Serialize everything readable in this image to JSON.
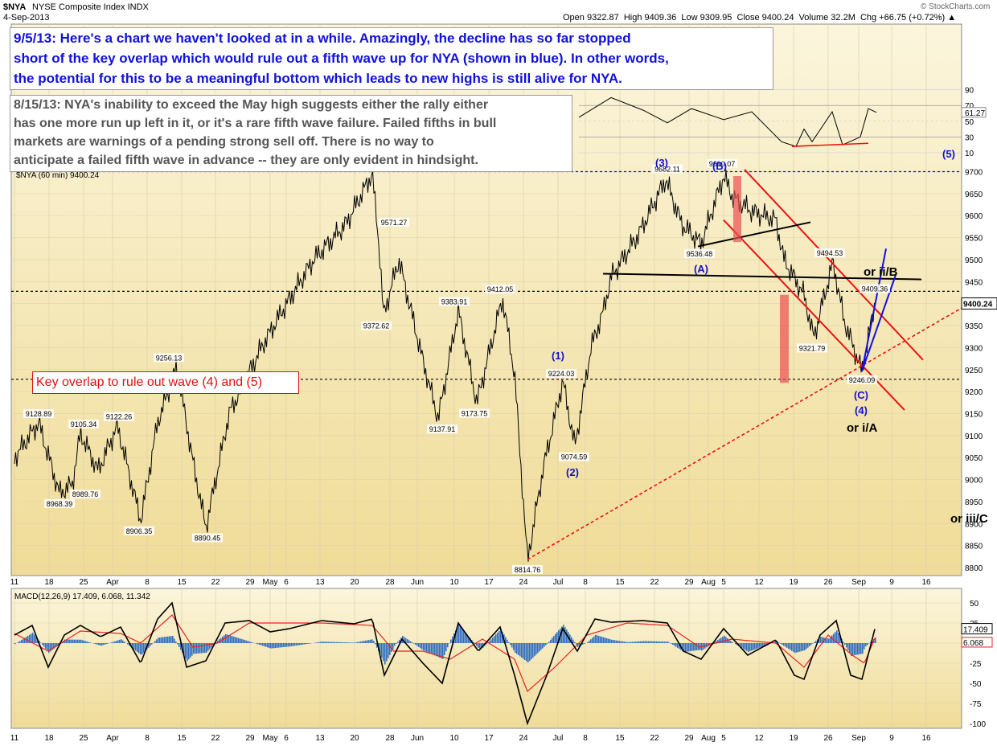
{
  "header": {
    "symbol": "$NYA",
    "name": "NYSE Composite Index INDX",
    "date": "4-Sep-2013",
    "ohlc": "Open 9322.87  High 9409.36  Low 9309.95  Close 9400.24  Volume 32.2M  Chg +66.75 (+0.72%) ▲",
    "watermark": "© StockCharts.com"
  },
  "notes": {
    "note1": "9/5/13:  Here's a chart we haven't looked at in a while.  Amazingly, the decline has so far stopped short of the key overlap which would rule out a fifth wave up for NYA (shown in blue).  In other words, the potential for this to be a meaningful bottom which leads to new highs is still alive for NYA.",
    "note1_lines": [
      "9/5/13:  Here's a chart we haven't looked at in a while.  Amazingly, the decline has so far stopped",
      "short of the key overlap which would rule out a fifth wave up for NYA (shown in blue).  In other words,",
      "the potential for this to be a meaningful bottom which leads to new highs is still alive for NYA."
    ],
    "note2_lines": [
      "8/15/13:  NYA's inability to exceed the May high suggests either the rally either",
      "has one more run up left in it, or it's a rare fifth wave failure.  Failed fifths in bull",
      "markets are warnings of a pending strong sell off.  There is no way to",
      "anticipate a failed fifth wave in advance -- they are only evident in hindsight."
    ],
    "key_overlap": "Key overlap to rule out wave (4) and (5)"
  },
  "colors": {
    "bg_top": "#fbf5dc",
    "bg_bottom": "#f0dc98",
    "note1_text": "#1010e0",
    "note2_text": "#555555",
    "wave_blue": "#1010d0",
    "trend_red": "#ee1010",
    "macd_line": "#000000",
    "signal_line": "#ee2020",
    "hist": "#3070c0"
  },
  "chart_data": {
    "type": "line",
    "title": "$NYA (60 min) 9400.24",
    "price_axis": {
      "ticks": [
        8800,
        8850,
        8900,
        8950,
        9000,
        9050,
        9100,
        9150,
        9200,
        9250,
        9300,
        9350,
        9400,
        9450,
        9500,
        9550,
        9600,
        9650,
        9700
      ],
      "ylim": [
        8780,
        9720
      ],
      "last_value": "9400.24"
    },
    "rsi_axis": {
      "ticks": [
        10,
        30,
        50,
        70,
        90
      ],
      "last_value": "61.27"
    },
    "macd_axis": {
      "ticks": [
        50,
        25,
        0,
        -25,
        -50,
        -75,
        -100
      ],
      "ylim": [
        -105,
        60
      ],
      "label": "MACD(12,26,9) 17.409, 6.068, 11.342",
      "macd_value": "17.409",
      "signal_value": "6.068"
    },
    "x_ticks": [
      "11",
      "18",
      "25",
      "Apr",
      "8",
      "15",
      "22",
      "29",
      "May",
      "6",
      "13",
      "20",
      "28",
      "Jun",
      "10",
      "17",
      "24",
      "Jul",
      "8",
      "15",
      "22",
      "29",
      "Aug",
      "5",
      "12",
      "19",
      "26",
      "Sep",
      "9",
      "16"
    ],
    "pivots": [
      {
        "label": "9128.89",
        "value": 9128.89
      },
      {
        "label": "8968.39",
        "value": 8968.39
      },
      {
        "label": "8989.76",
        "value": 8989.76
      },
      {
        "label": "9105.34",
        "value": 9105.34
      },
      {
        "label": "9122.26",
        "value": 9122.26
      },
      {
        "label": "8906.35",
        "value": 8906.35
      },
      {
        "label": "9256.13",
        "value": 9256.13
      },
      {
        "label": "8890.45",
        "value": 8890.45
      },
      {
        "label": "9695.46",
        "value": 9695.46
      },
      {
        "label": "9571.27",
        "value": 9571.27
      },
      {
        "label": "9372.62",
        "value": 9372.62
      },
      {
        "label": "9383.91",
        "value": 9383.91
      },
      {
        "label": "9412.05",
        "value": 9412.05
      },
      {
        "label": "9137.91",
        "value": 9137.91
      },
      {
        "label": "9173.75",
        "value": 9173.75
      },
      {
        "label": "8814.76",
        "value": 8814.76
      },
      {
        "label": "9224.03",
        "value": 9224.03
      },
      {
        "label": "9074.59",
        "value": 9074.59
      },
      {
        "label": "9682.11",
        "value": 9682.11
      },
      {
        "label": "9690.07",
        "value": 9690.07
      },
      {
        "label": "9536.48",
        "value": 9536.48
      },
      {
        "label": "9494.53",
        "value": 9494.53
      },
      {
        "label": "9321.79",
        "value": 9321.79
      },
      {
        "label": "9409.36",
        "value": 9409.36
      },
      {
        "label": "9246.09",
        "value": 9246.09
      }
    ],
    "wave_labels": [
      "(1)",
      "(2)",
      "(3)",
      "(A)",
      "(B)",
      "(C)",
      "(4)",
      "(5)"
    ],
    "alt_labels": [
      "or ii/B",
      "or i/A",
      "or iii/C"
    ],
    "reference_lines": [
      9700,
      9428,
      9228
    ]
  }
}
